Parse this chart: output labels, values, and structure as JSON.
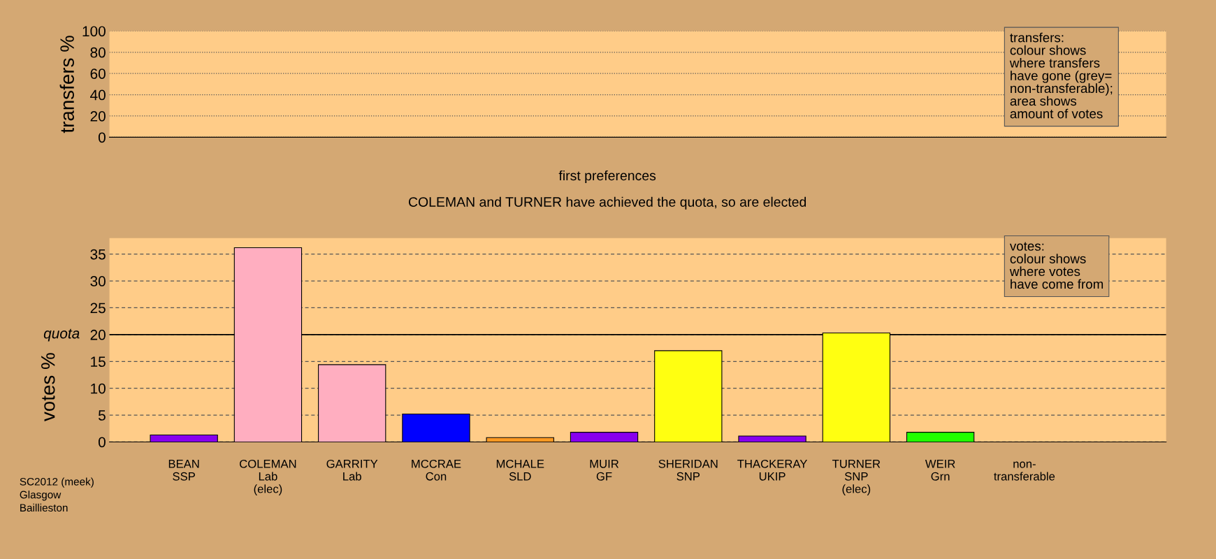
{
  "chart_data": [
    {
      "type": "bar",
      "ylabel": "transfers %",
      "categories": [
        null,
        null,
        null,
        null,
        null,
        null,
        null,
        null,
        null,
        null,
        null
      ],
      "values": [
        null,
        null,
        null,
        null,
        null,
        null,
        null,
        null,
        null,
        null,
        null
      ],
      "ylim": [
        0,
        100
      ],
      "yticks": [
        0,
        20,
        40,
        60,
        80,
        100
      ],
      "grid": "y",
      "tick_labels": "y",
      "annotations": [
        "transfers:\ncolour shows\nwhere transfers\nhave gone (grey=\nnon-transferable);\narea shows\namount of votes"
      ]
    },
    {
      "type": "bar",
      "title": "first preferences",
      "subtitle": "COLEMAN and TURNER have achieved the quota, so are elected",
      "ylabel": "votes %",
      "categories": [
        "BEAN\nSSP",
        "COLEMAN\nLab\n(elec)",
        "GARRITY\nLab",
        "MCCRAE\nCon",
        "MCHALE\nSLD",
        "MUIR\nGF",
        "SHERIDAN\nSNP",
        "THACKERAY\nUKIP",
        "TURNER\nSNP\n(elec)",
        "WEIR\nGrn",
        "non-\ntransferable"
      ],
      "values": [
        1.3,
        36.2,
        14.4,
        5.2,
        0.8,
        1.8,
        17.0,
        1.1,
        20.3,
        1.8,
        null
      ],
      "colors": [
        "#8800ee",
        "#ffaec0",
        "#ffaec0",
        "#0000ff",
        "#ff9922",
        "#8800ee",
        "#ffff11",
        "#8800ee",
        "#ffff11",
        "#22ff00",
        null
      ],
      "ylim": [
        0,
        38
      ],
      "yticks": [
        0,
        5,
        10,
        15,
        20,
        25,
        30,
        35
      ],
      "grid": "y",
      "ref_lines": [
        {
          "axis": "y",
          "value": 20,
          "label": "quota"
        }
      ],
      "annotations": [
        "votes:\ncolour shows\nwhere votes\nhave come from",
        "SC2012 (meek)\nGlasgow\nBaillieston"
      ]
    }
  ]
}
